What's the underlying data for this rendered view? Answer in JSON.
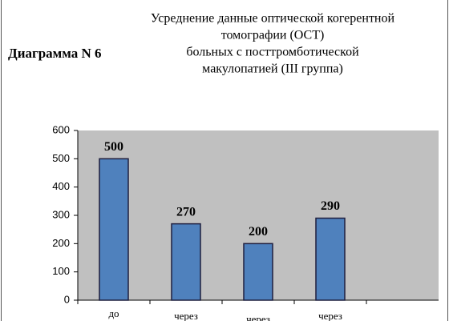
{
  "chart_data": {
    "type": "bar",
    "label": "Диаграмма N 6",
    "title": [
      "Усреднение данные оптической  когерентной",
      "томографии (ОСТ)",
      "больных с посттромботической",
      "макулопатией (III группа)"
    ],
    "categories": [
      "до",
      "через",
      "через",
      "через",
      null
    ],
    "values": [
      500,
      270,
      200,
      290,
      null
    ],
    "color": "#4f81bd",
    "ylim": [
      0,
      600
    ],
    "yticks": [
      0,
      100,
      200,
      300,
      400,
      500,
      600
    ],
    "grid": false
  }
}
